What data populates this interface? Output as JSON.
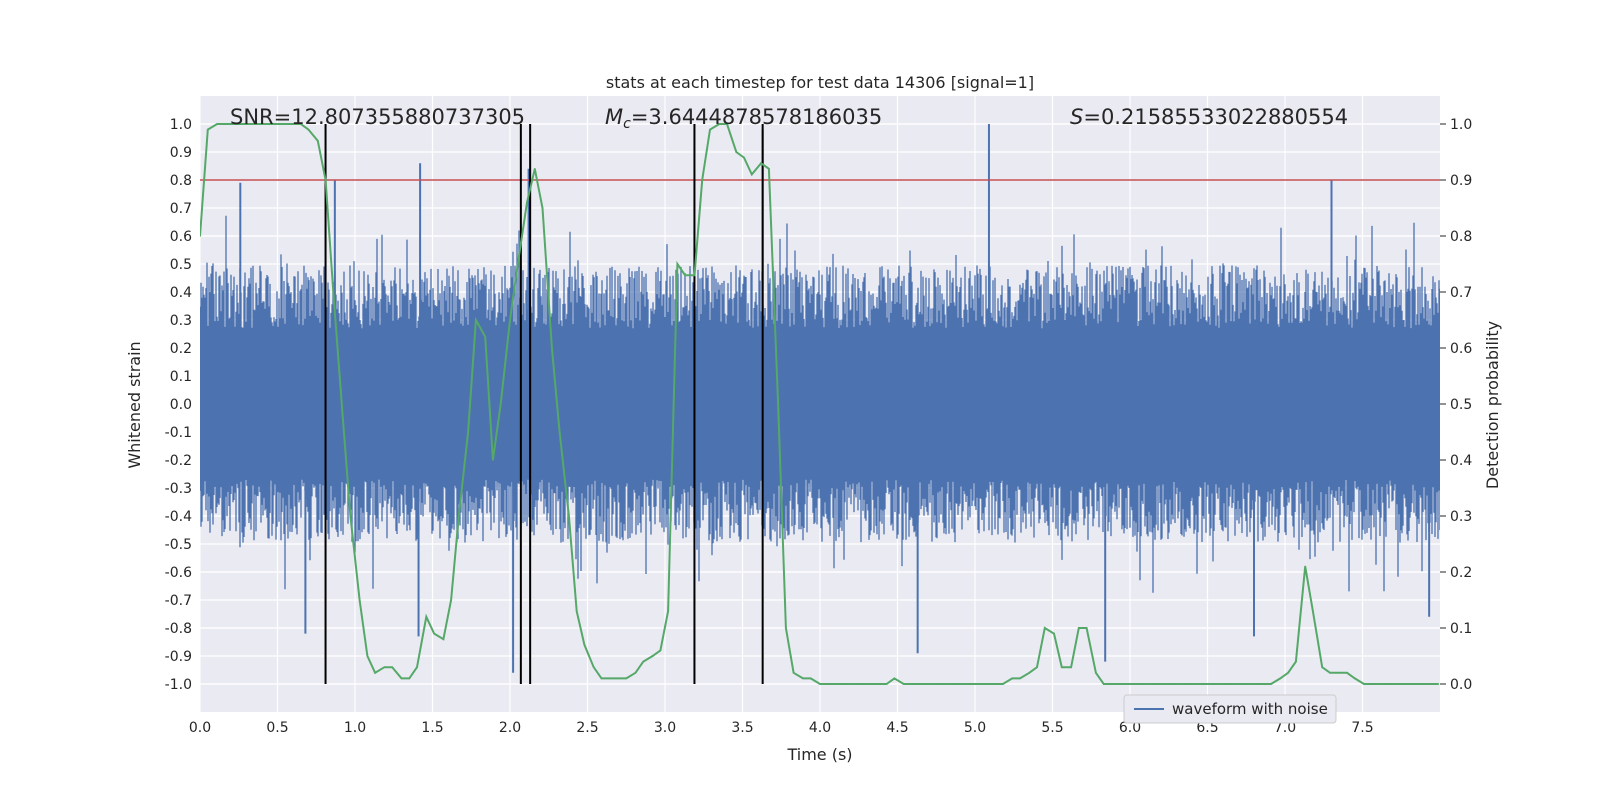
{
  "chart_data": {
    "type": "line",
    "title": "stats at each timestep for test data 14306 [signal=1]",
    "xlabel": "Time (s)",
    "ylabel": "Whitened strain",
    "y2label": "Detection probability",
    "xlim": [
      0.0,
      8.0
    ],
    "ylim": [
      -1.1,
      1.1
    ],
    "y2lim": [
      -0.05,
      1.05
    ],
    "xticks": [
      "0.0",
      "0.5",
      "1.0",
      "1.5",
      "2.0",
      "2.5",
      "3.0",
      "3.5",
      "4.0",
      "4.5",
      "5.0",
      "5.5",
      "6.0",
      "6.5",
      "7.0",
      "7.5"
    ],
    "yticks": [
      "-1.0",
      "-0.9",
      "-0.8",
      "-0.7",
      "-0.6",
      "-0.5",
      "-0.4",
      "-0.3",
      "-0.2",
      "-0.1",
      "0.0",
      "0.1",
      "0.2",
      "0.3",
      "0.4",
      "0.5",
      "0.6",
      "0.7",
      "0.8",
      "0.9",
      "1.0"
    ],
    "y2ticks": [
      "0.0",
      "0.1",
      "0.2",
      "0.3",
      "0.4",
      "0.5",
      "0.6",
      "0.7",
      "0.8",
      "0.9",
      "1.0"
    ],
    "annotations": {
      "snr": "SNR=12.807355880737305",
      "mc_label": "M",
      "mc_sub": "c",
      "mc_value": "=3.6444878578186035",
      "s_label": "S",
      "s_value": "=0.21585533022880554"
    },
    "legend": {
      "label": "waveform with noise",
      "location": "lower-right"
    },
    "threshold_line": {
      "y2": 0.9,
      "color": "#c44e52"
    },
    "vertical_lines": [
      0.81,
      2.07,
      2.13,
      3.19,
      3.63
    ],
    "waveform": {
      "name": "waveform with noise",
      "color": "#4c72b0",
      "noise_envelope": [
        -0.45,
        0.45
      ],
      "peaks": [
        {
          "x": 1.42,
          "y": 0.86
        },
        {
          "x": 0.87,
          "y": 0.8
        },
        {
          "x": 0.26,
          "y": 0.79
        },
        {
          "x": 2.12,
          "y": 0.84
        },
        {
          "x": 3.63,
          "y": 0.98
        },
        {
          "x": 5.09,
          "y": 1.0
        },
        {
          "x": 7.3,
          "y": 0.8
        },
        {
          "x": 0.68,
          "y": -0.82
        },
        {
          "x": 1.41,
          "y": -0.83
        },
        {
          "x": 5.84,
          "y": -0.92
        },
        {
          "x": 4.63,
          "y": -0.89
        },
        {
          "x": 6.8,
          "y": -0.83
        },
        {
          "x": 2.02,
          "y": -0.96
        },
        {
          "x": 7.93,
          "y": -0.76
        }
      ]
    },
    "series": [
      {
        "name": "Detection probability",
        "axis": "y2",
        "color": "#55a868",
        "x": [
          0.0,
          0.05,
          0.11,
          0.16,
          0.22,
          0.27,
          0.32,
          0.38,
          0.43,
          0.49,
          0.54,
          0.59,
          0.65,
          0.7,
          0.76,
          0.81,
          0.86,
          0.92,
          0.97,
          1.03,
          1.08,
          1.13,
          1.19,
          1.24,
          1.3,
          1.35,
          1.4,
          1.46,
          1.51,
          1.57,
          1.62,
          1.67,
          1.73,
          1.78,
          1.84,
          1.89,
          1.94,
          2.0,
          2.05,
          2.11,
          2.16,
          2.21,
          2.27,
          2.32,
          2.38,
          2.43,
          2.48,
          2.54,
          2.59,
          2.65,
          2.7,
          2.75,
          2.81,
          2.86,
          2.92,
          2.97,
          3.02,
          3.08,
          3.13,
          3.19,
          3.24,
          3.29,
          3.35,
          3.4,
          3.46,
          3.51,
          3.56,
          3.62,
          3.67,
          3.73,
          3.78,
          3.83,
          3.89,
          3.94,
          4.0,
          4.05,
          4.1,
          4.16,
          4.21,
          4.27,
          4.32,
          4.37,
          4.43,
          4.48,
          4.54,
          4.59,
          4.64,
          4.7,
          4.75,
          4.81,
          4.86,
          4.91,
          4.97,
          5.02,
          5.08,
          5.13,
          5.18,
          5.24,
          5.29,
          5.35,
          5.4,
          5.45,
          5.51,
          5.56,
          5.62,
          5.67,
          5.72,
          5.78,
          5.83,
          5.89,
          5.94,
          5.99,
          6.05,
          6.1,
          6.16,
          6.21,
          6.26,
          6.32,
          6.37,
          6.43,
          6.48,
          6.53,
          6.59,
          6.64,
          6.7,
          6.75,
          6.8,
          6.86,
          6.91,
          6.97,
          7.02,
          7.07,
          7.13,
          7.18,
          7.24,
          7.29,
          7.34,
          7.4,
          7.45,
          7.51,
          7.56,
          7.61,
          7.67,
          7.72,
          7.78,
          7.83,
          7.88,
          7.94,
          7.99
        ],
        "y": [
          0.8,
          0.99,
          1.0,
          1.0,
          1.0,
          1.0,
          1.0,
          1.0,
          1.0,
          1.0,
          1.0,
          1.0,
          1.0,
          0.99,
          0.97,
          0.9,
          0.7,
          0.48,
          0.3,
          0.15,
          0.05,
          0.02,
          0.03,
          0.03,
          0.01,
          0.01,
          0.03,
          0.12,
          0.09,
          0.08,
          0.15,
          0.3,
          0.45,
          0.65,
          0.62,
          0.4,
          0.5,
          0.65,
          0.75,
          0.86,
          0.92,
          0.85,
          0.6,
          0.45,
          0.3,
          0.13,
          0.07,
          0.03,
          0.01,
          0.01,
          0.01,
          0.01,
          0.02,
          0.04,
          0.05,
          0.06,
          0.13,
          0.75,
          0.73,
          0.73,
          0.9,
          0.99,
          1.0,
          1.0,
          0.95,
          0.94,
          0.91,
          0.93,
          0.92,
          0.5,
          0.1,
          0.02,
          0.01,
          0.01,
          0.0,
          0.0,
          0.0,
          0.0,
          0.0,
          0.0,
          0.0,
          0.0,
          0.0,
          0.01,
          0.0,
          0.0,
          0.0,
          0.0,
          0.0,
          0.0,
          0.0,
          0.0,
          0.0,
          0.0,
          0.0,
          0.0,
          0.0,
          0.01,
          0.01,
          0.02,
          0.03,
          0.1,
          0.09,
          0.03,
          0.03,
          0.1,
          0.1,
          0.02,
          0.0,
          0.0,
          0.0,
          0.0,
          0.0,
          0.0,
          0.0,
          0.0,
          0.0,
          0.0,
          0.0,
          0.0,
          0.0,
          0.0,
          0.0,
          0.0,
          0.0,
          0.0,
          0.0,
          0.0,
          0.0,
          0.01,
          0.02,
          0.04,
          0.21,
          0.13,
          0.03,
          0.02,
          0.02,
          0.02,
          0.01,
          0.0,
          0.0,
          0.0,
          0.0,
          0.0,
          0.0,
          0.0,
          0.0,
          0.0,
          0.0
        ]
      }
    ]
  }
}
